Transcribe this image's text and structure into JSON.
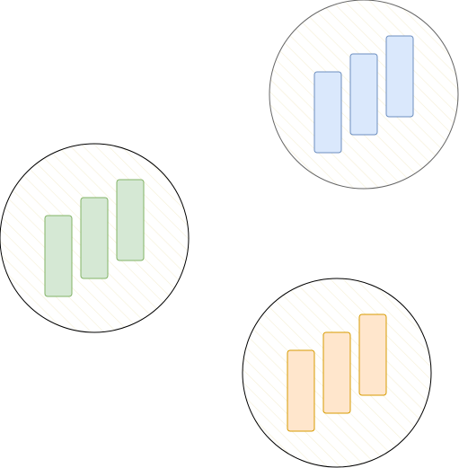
{
  "diagram": {
    "groups": [
      {
        "name": "group-blue",
        "circle_stroke": "#666666",
        "hatch_color": "#f5efd6",
        "bar_fill": "#dae8fc",
        "bar_stroke": "#6c8ebf",
        "bar_count": 3
      },
      {
        "name": "group-green",
        "circle_stroke": "#000000",
        "hatch_color": "#f5efd6",
        "bar_fill": "#d5e8d4",
        "bar_stroke": "#82b366",
        "bar_count": 3
      },
      {
        "name": "group-orange",
        "circle_stroke": "#000000",
        "hatch_color": "#f5efd6",
        "bar_fill": "#ffe6cc",
        "bar_stroke": "#d79b00",
        "bar_count": 3
      }
    ]
  }
}
